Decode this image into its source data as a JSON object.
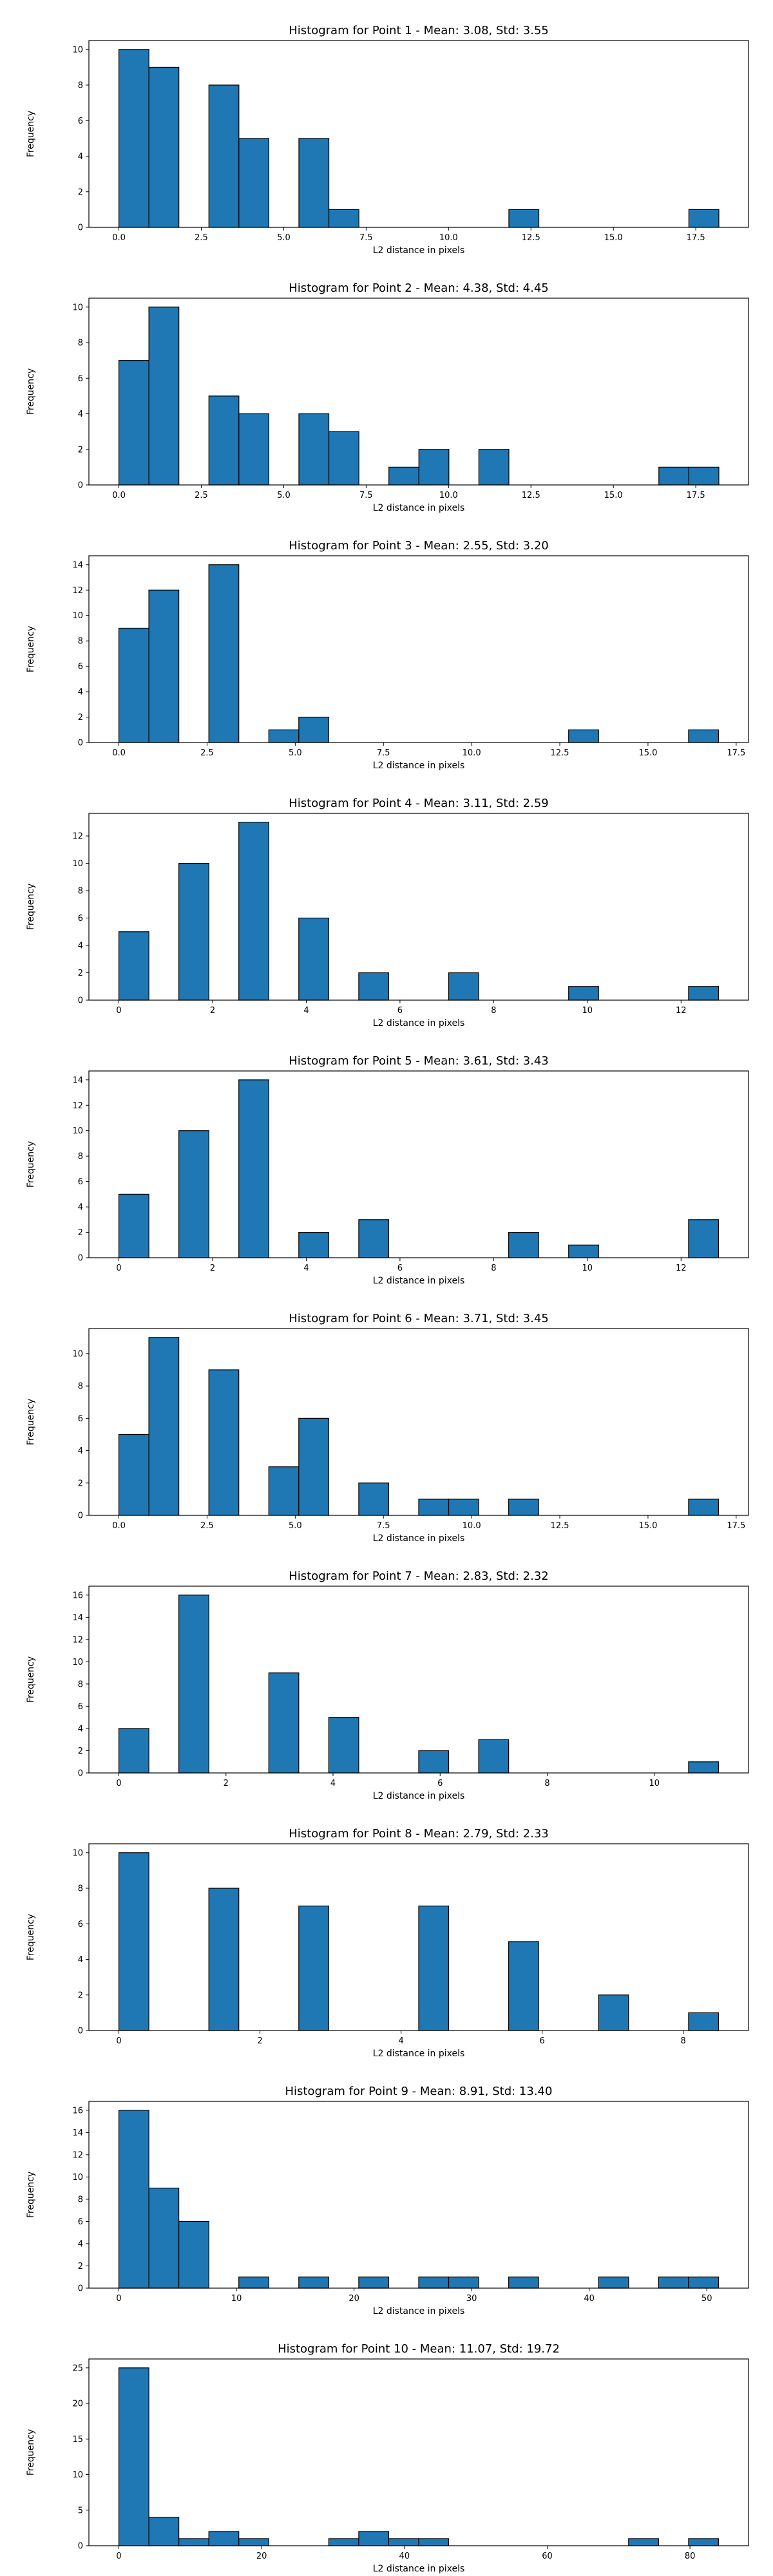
{
  "colors": {
    "bar_fill": "#1f77b4",
    "bar_edge": "#000000",
    "background": "#ffffff"
  },
  "chart_data": [
    {
      "type": "bar",
      "title": "Histogram for Point 1 - Mean: 3.08, Std: 3.55",
      "xlabel": "L2 distance in pixels",
      "ylabel": "Frequency",
      "xlim": [
        -0.91,
        19.1
      ],
      "ylim": [
        0,
        10.5
      ],
      "xticks": [
        0.0,
        2.5,
        5.0,
        7.5,
        10.0,
        12.5,
        15.0,
        17.5
      ],
      "xtick_labels": [
        "0.0",
        "2.5",
        "5.0",
        "7.5",
        "10.0",
        "12.5",
        "15.0",
        "17.5"
      ],
      "yticks": [
        0,
        2,
        4,
        6,
        8,
        10
      ],
      "ytick_labels": [
        "0",
        "2",
        "4",
        "6",
        "8",
        "10"
      ],
      "bins": [
        [
          0.0,
          0.91,
          10
        ],
        [
          0.91,
          1.82,
          9
        ],
        [
          2.73,
          3.64,
          8
        ],
        [
          3.64,
          4.55,
          5
        ],
        [
          5.46,
          6.37,
          5
        ],
        [
          6.37,
          7.28,
          1
        ],
        [
          11.83,
          12.74,
          1
        ],
        [
          17.29,
          18.2,
          1
        ]
      ]
    },
    {
      "type": "bar",
      "title": "Histogram for Point 2 - Mean: 4.38, Std: 4.45",
      "xlabel": "L2 distance in pixels",
      "ylabel": "Frequency",
      "xlim": [
        -0.91,
        19.1
      ],
      "ylim": [
        0,
        10.5
      ],
      "xticks": [
        0.0,
        2.5,
        5.0,
        7.5,
        10.0,
        12.5,
        15.0,
        17.5
      ],
      "xtick_labels": [
        "0.0",
        "2.5",
        "5.0",
        "7.5",
        "10.0",
        "12.5",
        "15.0",
        "17.5"
      ],
      "yticks": [
        0,
        2,
        4,
        6,
        8,
        10
      ],
      "ytick_labels": [
        "0",
        "2",
        "4",
        "6",
        "8",
        "10"
      ],
      "bins": [
        [
          0.0,
          0.91,
          7
        ],
        [
          0.91,
          1.82,
          10
        ],
        [
          2.73,
          3.64,
          5
        ],
        [
          3.64,
          4.55,
          4
        ],
        [
          5.46,
          6.37,
          4
        ],
        [
          6.37,
          7.28,
          3
        ],
        [
          8.19,
          9.1,
          1
        ],
        [
          9.1,
          10.01,
          2
        ],
        [
          10.92,
          11.83,
          2
        ],
        [
          16.38,
          17.29,
          1
        ],
        [
          17.29,
          18.2,
          1
        ]
      ]
    },
    {
      "type": "bar",
      "title": "Histogram for Point 3 - Mean: 2.55, Std: 3.20",
      "xlabel": "L2 distance in pixels",
      "ylabel": "Frequency",
      "xlim": [
        -0.85,
        17.85
      ],
      "ylim": [
        0,
        14.7
      ],
      "xticks": [
        0.0,
        2.5,
        5.0,
        7.5,
        10.0,
        12.5,
        15.0,
        17.5
      ],
      "xtick_labels": [
        "0.0",
        "2.5",
        "5.0",
        "7.5",
        "10.0",
        "12.5",
        "15.0",
        "17.5"
      ],
      "yticks": [
        0,
        2,
        4,
        6,
        8,
        10,
        12,
        14
      ],
      "ytick_labels": [
        "0",
        "2",
        "4",
        "6",
        "8",
        "10",
        "12",
        "14"
      ],
      "bins": [
        [
          0.0,
          0.85,
          9
        ],
        [
          0.85,
          1.7,
          12
        ],
        [
          2.55,
          3.4,
          14
        ],
        [
          4.25,
          5.1,
          1
        ],
        [
          5.1,
          5.95,
          2
        ],
        [
          12.75,
          13.6,
          1
        ],
        [
          16.15,
          17.0,
          1
        ]
      ]
    },
    {
      "type": "bar",
      "title": "Histogram for Point 4 - Mean: 3.11, Std: 2.59",
      "xlabel": "L2 distance in pixels",
      "ylabel": "Frequency",
      "xlim": [
        -0.64,
        13.44
      ],
      "ylim": [
        0,
        13.65
      ],
      "xticks": [
        0,
        2,
        4,
        6,
        8,
        10,
        12
      ],
      "xtick_labels": [
        "0",
        "2",
        "4",
        "6",
        "8",
        "10",
        "12"
      ],
      "yticks": [
        0,
        2,
        4,
        6,
        8,
        10,
        12
      ],
      "ytick_labels": [
        "0",
        "2",
        "4",
        "6",
        "8",
        "10",
        "12"
      ],
      "bins": [
        [
          0.0,
          0.64,
          5
        ],
        [
          1.28,
          1.92,
          10
        ],
        [
          2.56,
          3.2,
          13
        ],
        [
          3.84,
          4.48,
          6
        ],
        [
          5.12,
          5.76,
          2
        ],
        [
          7.04,
          7.68,
          2
        ],
        [
          9.6,
          10.24,
          1
        ],
        [
          12.16,
          12.8,
          1
        ]
      ]
    },
    {
      "type": "bar",
      "title": "Histogram for Point 5 - Mean: 3.61, Std: 3.43",
      "xlabel": "L2 distance in pixels",
      "ylabel": "Frequency",
      "xlim": [
        -0.64,
        13.44
      ],
      "ylim": [
        0,
        14.7
      ],
      "xticks": [
        0,
        2,
        4,
        6,
        8,
        10,
        12
      ],
      "xtick_labels": [
        "0",
        "2",
        "4",
        "6",
        "8",
        "10",
        "12"
      ],
      "yticks": [
        0,
        2,
        4,
        6,
        8,
        10,
        12,
        14
      ],
      "ytick_labels": [
        "0",
        "2",
        "4",
        "6",
        "8",
        "10",
        "12",
        "14"
      ],
      "bins": [
        [
          0.0,
          0.64,
          5
        ],
        [
          1.28,
          1.92,
          10
        ],
        [
          2.56,
          3.2,
          14
        ],
        [
          3.84,
          4.48,
          2
        ],
        [
          5.12,
          5.76,
          3
        ],
        [
          8.32,
          8.96,
          2
        ],
        [
          9.6,
          10.24,
          1
        ],
        [
          12.16,
          12.8,
          3
        ]
      ]
    },
    {
      "type": "bar",
      "title": "Histogram for Point 6 - Mean: 3.71, Std: 3.45",
      "xlabel": "L2 distance in pixels",
      "ylabel": "Frequency",
      "xlim": [
        -0.85,
        17.85
      ],
      "ylim": [
        0,
        11.55
      ],
      "xticks": [
        0.0,
        2.5,
        5.0,
        7.5,
        10.0,
        12.5,
        15.0,
        17.5
      ],
      "xtick_labels": [
        "0.0",
        "2.5",
        "5.0",
        "7.5",
        "10.0",
        "12.5",
        "15.0",
        "17.5"
      ],
      "yticks": [
        0,
        2,
        4,
        6,
        8,
        10
      ],
      "ytick_labels": [
        "0",
        "2",
        "4",
        "6",
        "8",
        "10"
      ],
      "bins": [
        [
          0.0,
          0.85,
          5
        ],
        [
          0.85,
          1.7,
          11
        ],
        [
          2.55,
          3.4,
          9
        ],
        [
          4.25,
          5.1,
          3
        ],
        [
          5.1,
          5.95,
          6
        ],
        [
          6.8,
          7.65,
          2
        ],
        [
          8.5,
          9.35,
          1
        ],
        [
          9.35,
          10.2,
          1
        ],
        [
          11.05,
          11.9,
          1
        ],
        [
          16.15,
          17.0,
          1
        ]
      ]
    },
    {
      "type": "bar",
      "title": "Histogram for Point 7 - Mean: 2.83, Std: 2.32",
      "xlabel": "L2 distance in pixels",
      "ylabel": "Frequency",
      "xlim": [
        -0.56,
        11.76
      ],
      "ylim": [
        0,
        16.8
      ],
      "xticks": [
        0,
        2,
        4,
        6,
        8,
        10
      ],
      "xtick_labels": [
        "0",
        "2",
        "4",
        "6",
        "8",
        "10"
      ],
      "yticks": [
        0,
        2,
        4,
        6,
        8,
        10,
        12,
        14,
        16
      ],
      "ytick_labels": [
        "0",
        "2",
        "4",
        "6",
        "8",
        "10",
        "12",
        "14",
        "16"
      ],
      "bins": [
        [
          0.0,
          0.56,
          4
        ],
        [
          1.12,
          1.68,
          16
        ],
        [
          2.8,
          3.36,
          9
        ],
        [
          3.92,
          4.48,
          5
        ],
        [
          5.6,
          6.16,
          2
        ],
        [
          6.72,
          7.28,
          3
        ],
        [
          10.64,
          11.2,
          1
        ]
      ]
    },
    {
      "type": "bar",
      "title": "Histogram for Point 8 - Mean: 2.79, Std: 2.33",
      "xlabel": "L2 distance in pixels",
      "ylabel": "Frequency",
      "xlim": [
        -0.425,
        8.925
      ],
      "ylim": [
        0,
        10.5
      ],
      "xticks": [
        0,
        2,
        4,
        6,
        8
      ],
      "xtick_labels": [
        "0",
        "2",
        "4",
        "6",
        "8"
      ],
      "yticks": [
        0,
        2,
        4,
        6,
        8,
        10
      ],
      "ytick_labels": [
        "0",
        "2",
        "4",
        "6",
        "8",
        "10"
      ],
      "bins": [
        [
          0.0,
          0.425,
          10
        ],
        [
          1.275,
          1.7,
          8
        ],
        [
          2.55,
          2.975,
          7
        ],
        [
          4.25,
          4.675,
          7
        ],
        [
          5.525,
          5.95,
          5
        ],
        [
          6.8,
          7.225,
          2
        ],
        [
          8.075,
          8.5,
          1
        ]
      ]
    },
    {
      "type": "bar",
      "title": "Histogram for Point 9 - Mean: 8.91, Std: 13.40",
      "xlabel": "L2 distance in pixels",
      "ylabel": "Frequency",
      "xlim": [
        -2.55,
        53.55
      ],
      "ylim": [
        0,
        16.8
      ],
      "xticks": [
        0,
        10,
        20,
        30,
        40,
        50
      ],
      "xtick_labels": [
        "0",
        "10",
        "20",
        "30",
        "40",
        "50"
      ],
      "yticks": [
        0,
        2,
        4,
        6,
        8,
        10,
        12,
        14,
        16
      ],
      "ytick_labels": [
        "0",
        "2",
        "4",
        "6",
        "8",
        "10",
        "12",
        "14",
        "16"
      ],
      "bins": [
        [
          0.0,
          2.55,
          16
        ],
        [
          2.55,
          5.1,
          9
        ],
        [
          5.1,
          7.65,
          6
        ],
        [
          10.2,
          12.75,
          1
        ],
        [
          15.3,
          17.85,
          1
        ],
        [
          20.4,
          22.95,
          1
        ],
        [
          25.5,
          28.05,
          1
        ],
        [
          28.05,
          30.6,
          1
        ],
        [
          33.15,
          35.7,
          1
        ],
        [
          40.8,
          43.35,
          1
        ],
        [
          45.9,
          48.45,
          1
        ],
        [
          48.45,
          51.0,
          1
        ]
      ]
    },
    {
      "type": "bar",
      "title": "Histogram for Point 10 - Mean: 11.07, Std: 19.72",
      "xlabel": "L2 distance in pixels",
      "ylabel": "Frequency",
      "xlim": [
        -4.2,
        88.2
      ],
      "ylim": [
        0,
        26.25
      ],
      "xticks": [
        0,
        20,
        40,
        60,
        80
      ],
      "xtick_labels": [
        "0",
        "20",
        "40",
        "60",
        "80"
      ],
      "yticks": [
        0,
        5,
        10,
        15,
        20,
        25
      ],
      "ytick_labels": [
        "0",
        "5",
        "10",
        "15",
        "20",
        "25"
      ],
      "bins": [
        [
          0.0,
          4.2,
          25
        ],
        [
          4.2,
          8.4,
          4
        ],
        [
          8.4,
          12.6,
          1
        ],
        [
          12.6,
          16.8,
          2
        ],
        [
          16.8,
          21.0,
          1
        ],
        [
          29.4,
          33.6,
          1
        ],
        [
          33.6,
          37.8,
          2
        ],
        [
          37.8,
          42.0,
          1
        ],
        [
          42.0,
          46.2,
          1
        ],
        [
          71.4,
          75.6,
          1
        ],
        [
          79.8,
          84.0,
          1
        ]
      ]
    }
  ]
}
